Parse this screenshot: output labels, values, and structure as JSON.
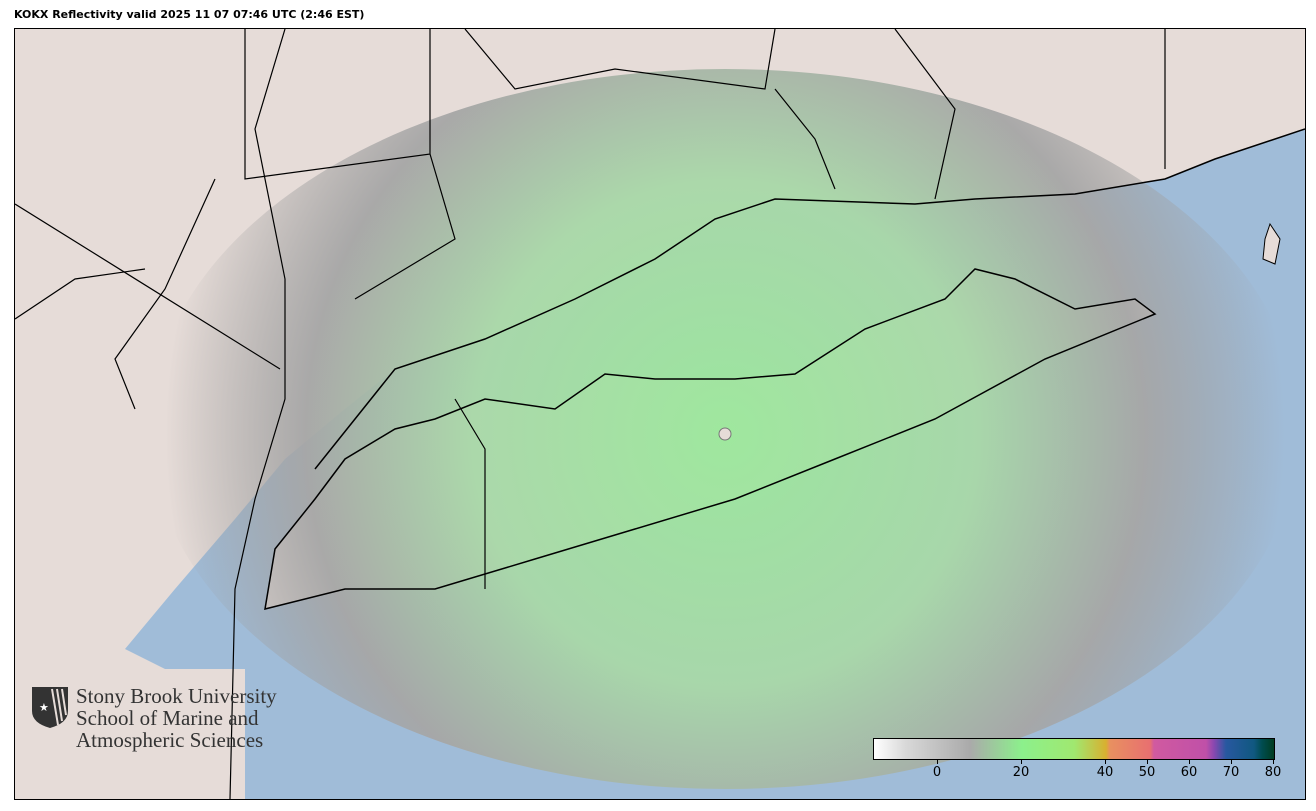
{
  "title": "KOKX Reflectivity valid 2025 11 07 07:46 UTC (2:46 EST)",
  "logo": {
    "lines": [
      "Stony Brook University",
      "School of Marine and",
      "Atmospheric Sciences"
    ],
    "icon": "shield-star-icon"
  },
  "colorbar": {
    "ticks": [
      "0",
      "20",
      "40",
      "50",
      "60",
      "70",
      "80"
    ],
    "colors": {
      "low": "#ffffff",
      "mid_gray": "#aaaaaa",
      "green": "#8cf08c",
      "yellow": "#d8b030",
      "orange": "#e89060",
      "pink": "#d05aa0",
      "purple": "#8848b0",
      "blue": "#2858a0",
      "teal": "#004c50"
    }
  },
  "colors": {
    "land": "#e6dcd8",
    "ocean": "#a0bcd8",
    "radar_gray": "#a8a8a8",
    "radar_green": "#98e898"
  }
}
